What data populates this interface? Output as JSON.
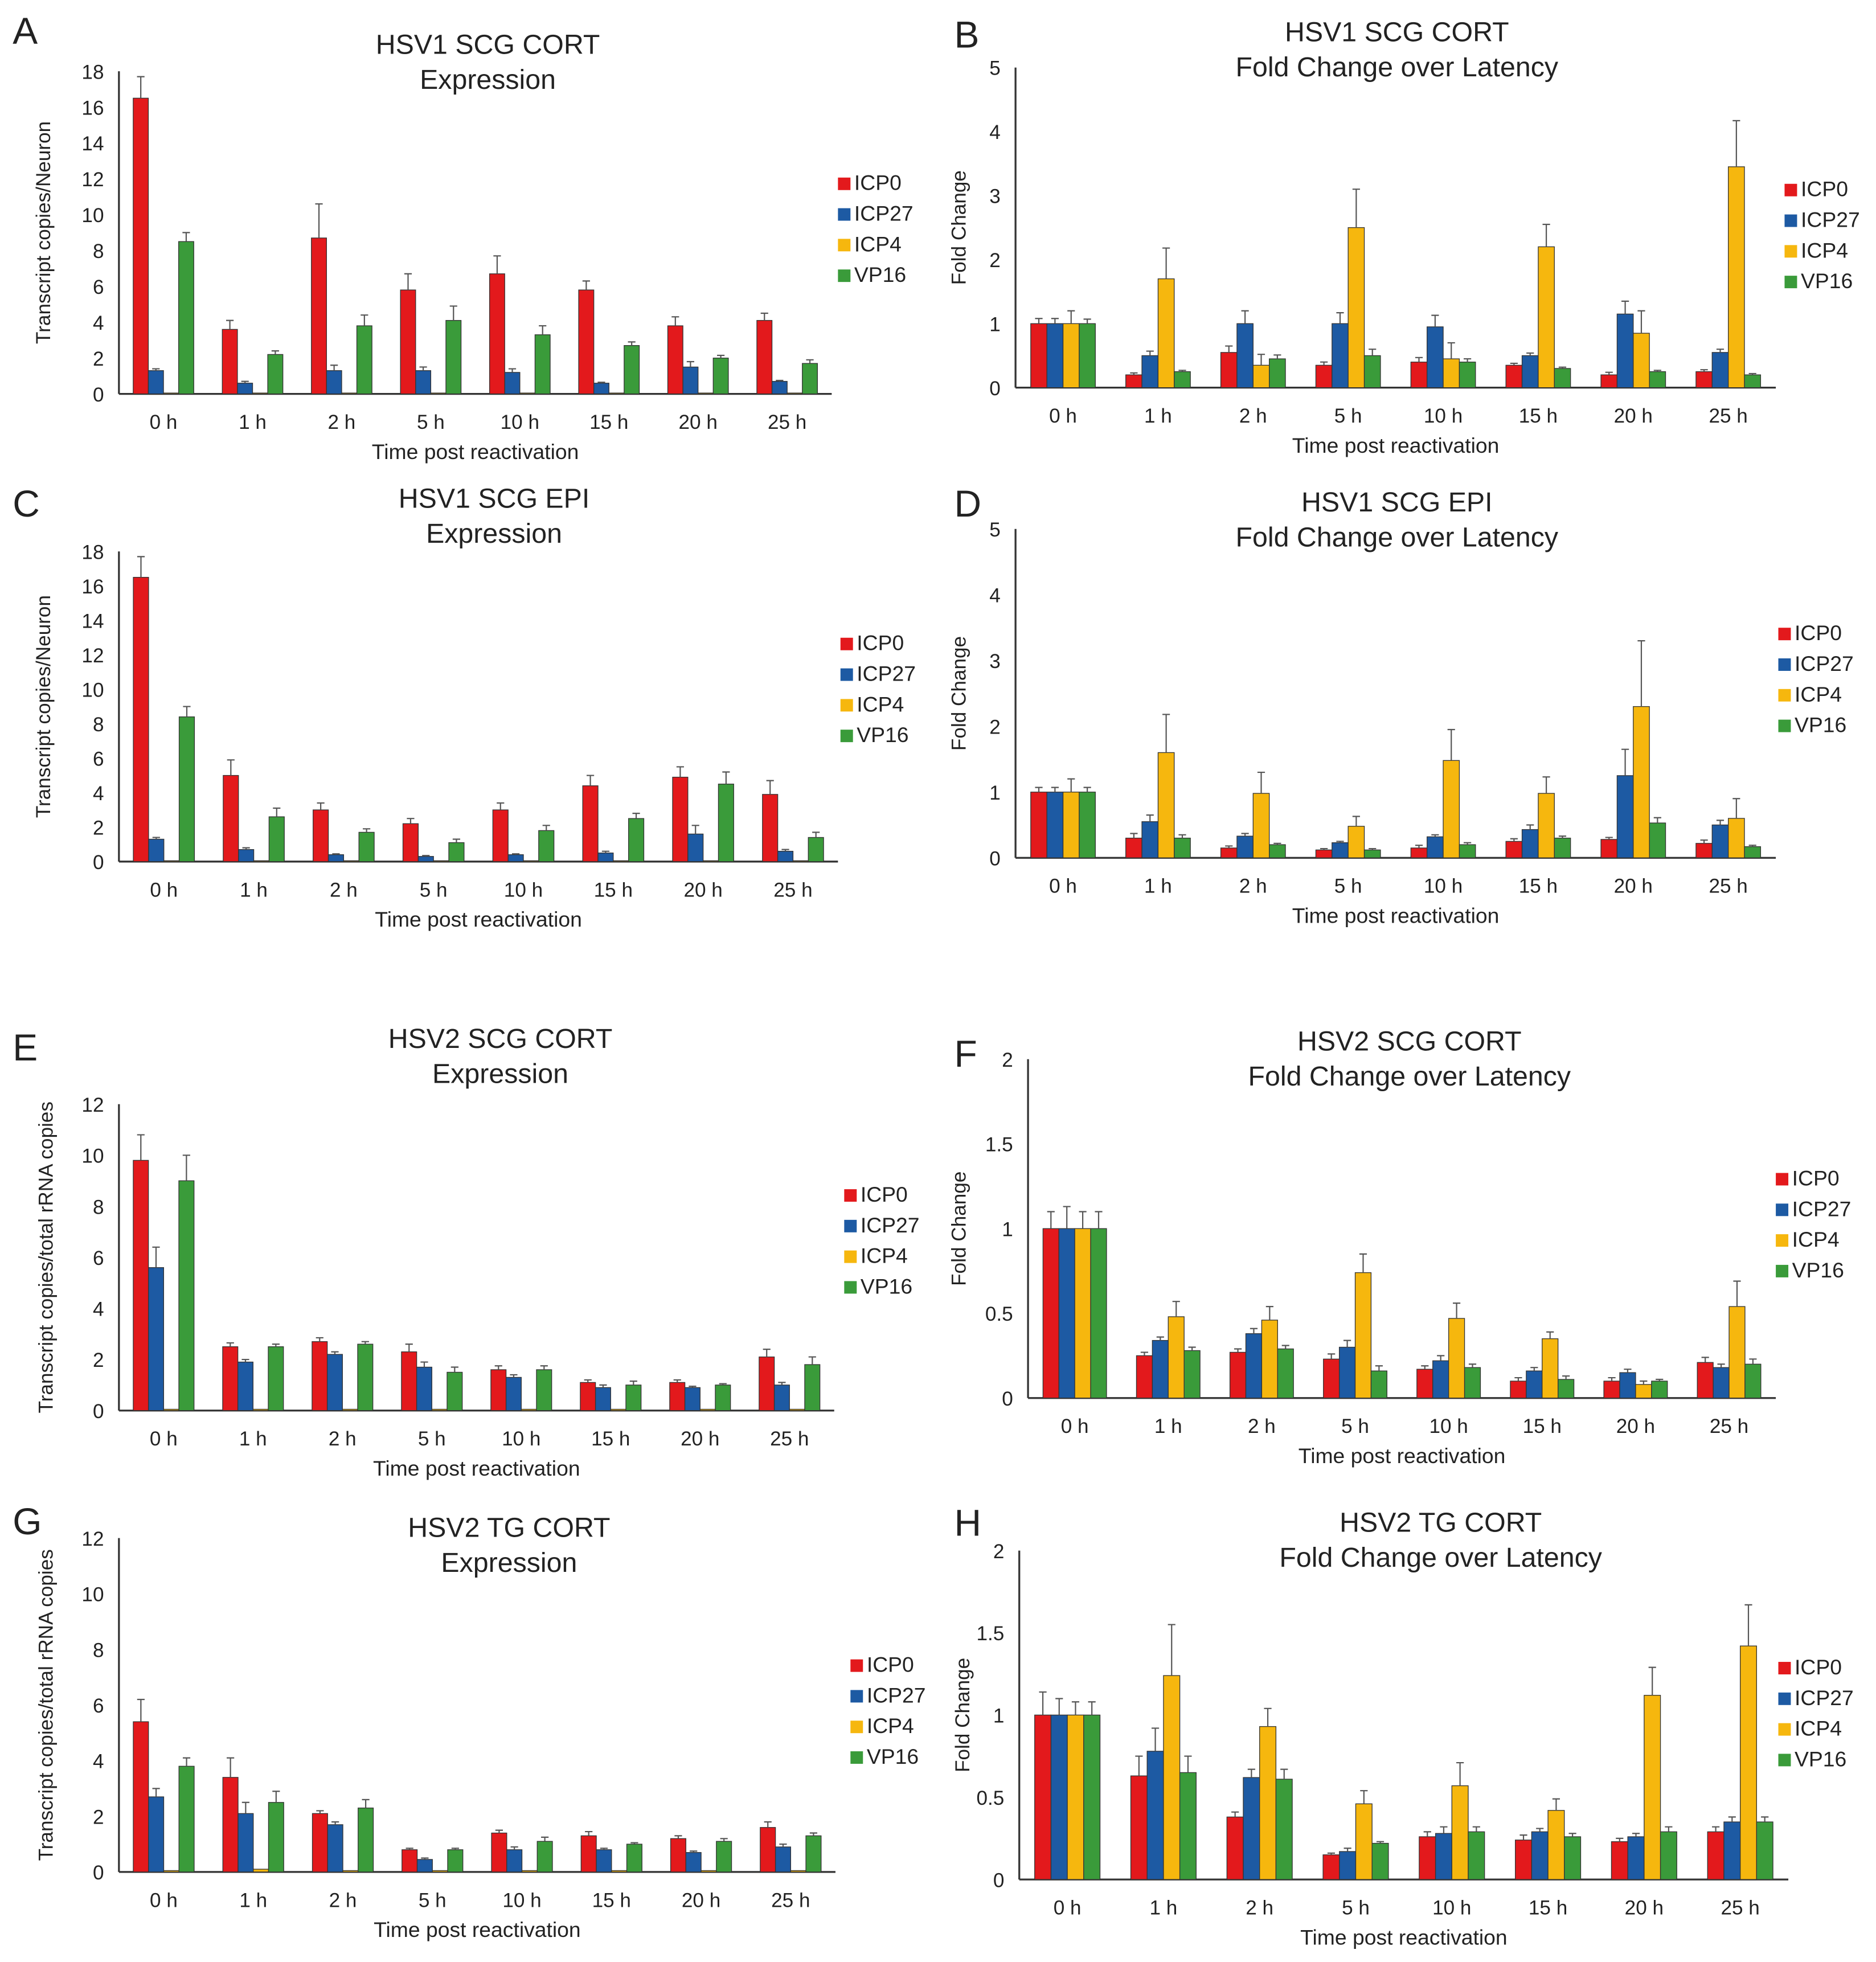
{
  "series_names": [
    "ICP0",
    "ICP27",
    "ICP4",
    "VP16"
  ],
  "colors": {
    "ICP0": "#e3191c",
    "ICP27": "#1d5aa3",
    "ICP4": "#f6b70e",
    "VP16": "#3a9b3a"
  },
  "chart_data": [
    {
      "type": "bar",
      "panel": "A",
      "title": [
        "HSV1 SCG CORT",
        "Expression"
      ],
      "xlabel": "Time post reactivation",
      "ylabel": "Transcript copies/Neuron",
      "ylim": [
        0,
        18
      ],
      "yticks": [
        0,
        2,
        4,
        6,
        8,
        10,
        12,
        14,
        16,
        18
      ],
      "legend": "right",
      "categories": [
        "0 h",
        "1 h",
        "2 h",
        "5 h",
        "10 h",
        "15 h",
        "20 h",
        "25 h"
      ],
      "series": [
        {
          "name": "ICP0",
          "values": [
            16.5,
            3.6,
            8.7,
            5.8,
            6.7,
            5.8,
            3.8,
            4.1
          ],
          "err": [
            1.2,
            0.5,
            1.9,
            0.9,
            1.0,
            0.5,
            0.5,
            0.4
          ]
        },
        {
          "name": "ICP27",
          "values": [
            1.3,
            0.6,
            1.3,
            1.3,
            1.2,
            0.6,
            1.5,
            0.7
          ],
          "err": [
            0.1,
            0.1,
            0.3,
            0.2,
            0.2,
            0.05,
            0.3,
            0.05
          ]
        },
        {
          "name": "ICP4",
          "values": [
            0.05,
            0.05,
            0.05,
            0.05,
            0.05,
            0.05,
            0.05,
            0.05
          ],
          "err": [
            0,
            0,
            0,
            0,
            0,
            0,
            0,
            0
          ]
        },
        {
          "name": "VP16",
          "values": [
            8.5,
            2.2,
            3.8,
            4.1,
            3.3,
            2.7,
            2.0,
            1.7
          ],
          "err": [
            0.5,
            0.2,
            0.6,
            0.8,
            0.5,
            0.2,
            0.15,
            0.2
          ]
        }
      ]
    },
    {
      "type": "bar",
      "panel": "B",
      "title": [
        "HSV1 SCG CORT",
        "Fold Change over Latency"
      ],
      "xlabel": "Time post reactivation",
      "ylabel": "Fold Change",
      "ylim": [
        0,
        5
      ],
      "yticks": [
        0,
        1,
        2,
        3,
        4,
        5
      ],
      "legend": "right",
      "categories": [
        "0 h",
        "1 h",
        "2 h",
        "5 h",
        "10 h",
        "15 h",
        "20 h",
        "25 h"
      ],
      "series": [
        {
          "name": "ICP0",
          "values": [
            1,
            0.2,
            0.55,
            0.35,
            0.4,
            0.35,
            0.2,
            0.25
          ],
          "err": [
            0.08,
            0.03,
            0.1,
            0.05,
            0.07,
            0.03,
            0.04,
            0.03
          ]
        },
        {
          "name": "ICP27",
          "values": [
            1,
            0.5,
            1.0,
            1.0,
            0.95,
            0.5,
            1.15,
            0.55
          ],
          "err": [
            0.08,
            0.07,
            0.2,
            0.17,
            0.18,
            0.04,
            0.2,
            0.05
          ]
        },
        {
          "name": "ICP4",
          "values": [
            1,
            1.7,
            0.35,
            2.5,
            0.45,
            2.2,
            0.85,
            3.45
          ],
          "err": [
            0.2,
            0.48,
            0.17,
            0.6,
            0.25,
            0.35,
            0.35,
            0.72
          ]
        },
        {
          "name": "VP16",
          "values": [
            1,
            0.25,
            0.45,
            0.5,
            0.4,
            0.3,
            0.25,
            0.2
          ],
          "err": [
            0.07,
            0.02,
            0.06,
            0.1,
            0.05,
            0.02,
            0.02,
            0.02
          ]
        }
      ]
    },
    {
      "type": "bar",
      "panel": "C",
      "title": [
        "HSV1 SCG EPI",
        "Expression"
      ],
      "xlabel": "Time post reactivation",
      "ylabel": "Transcript copies/Neuron",
      "ylim": [
        0,
        18
      ],
      "yticks": [
        0,
        2,
        4,
        6,
        8,
        10,
        12,
        14,
        16,
        18
      ],
      "legend": "right",
      "categories": [
        "0 h",
        "1 h",
        "2 h",
        "5 h",
        "10 h",
        "15 h",
        "20 h",
        "25 h"
      ],
      "series": [
        {
          "name": "ICP0",
          "values": [
            16.5,
            5.0,
            3.0,
            2.2,
            3.0,
            4.4,
            4.9,
            3.9
          ],
          "err": [
            1.2,
            0.9,
            0.4,
            0.3,
            0.4,
            0.6,
            0.6,
            0.8
          ]
        },
        {
          "name": "ICP27",
          "values": [
            1.3,
            0.7,
            0.4,
            0.3,
            0.4,
            0.5,
            1.6,
            0.6
          ],
          "err": [
            0.1,
            0.1,
            0.05,
            0.05,
            0.05,
            0.1,
            0.5,
            0.1
          ]
        },
        {
          "name": "ICP4",
          "values": [
            0.05,
            0.05,
            0.05,
            0.05,
            0.05,
            0.05,
            0.05,
            0.05
          ],
          "err": [
            0,
            0,
            0,
            0,
            0,
            0,
            0,
            0
          ]
        },
        {
          "name": "VP16",
          "values": [
            8.4,
            2.6,
            1.7,
            1.1,
            1.8,
            2.5,
            4.5,
            1.4
          ],
          "err": [
            0.6,
            0.5,
            0.2,
            0.2,
            0.3,
            0.3,
            0.7,
            0.3
          ]
        }
      ]
    },
    {
      "type": "bar",
      "panel": "D",
      "title": [
        "HSV1 SCG EPI",
        "Fold Change over Latency"
      ],
      "xlabel": "Time post reactivation",
      "ylabel": "Fold Change",
      "ylim": [
        0,
        5
      ],
      "yticks": [
        0,
        1,
        2,
        3,
        4,
        5
      ],
      "legend": "right",
      "categories": [
        "0 h",
        "1 h",
        "2 h",
        "5 h",
        "10 h",
        "15 h",
        "20 h",
        "25 h"
      ],
      "series": [
        {
          "name": "ICP0",
          "values": [
            1,
            0.3,
            0.15,
            0.12,
            0.15,
            0.25,
            0.28,
            0.22
          ],
          "err": [
            0.07,
            0.07,
            0.03,
            0.02,
            0.04,
            0.04,
            0.03,
            0.05
          ]
        },
        {
          "name": "ICP27",
          "values": [
            1,
            0.55,
            0.33,
            0.23,
            0.32,
            0.43,
            1.25,
            0.5
          ],
          "err": [
            0.07,
            0.1,
            0.04,
            0.02,
            0.03,
            0.07,
            0.4,
            0.07
          ]
        },
        {
          "name": "ICP4",
          "values": [
            1,
            1.6,
            0.98,
            0.48,
            1.48,
            0.98,
            2.3,
            0.6
          ],
          "err": [
            0.2,
            0.58,
            0.32,
            0.15,
            0.47,
            0.25,
            1.0,
            0.3
          ]
        },
        {
          "name": "VP16",
          "values": [
            1,
            0.3,
            0.2,
            0.12,
            0.2,
            0.3,
            0.53,
            0.17
          ],
          "err": [
            0.07,
            0.05,
            0.02,
            0.02,
            0.03,
            0.03,
            0.08,
            0.02
          ]
        }
      ]
    },
    {
      "type": "bar",
      "panel": "E",
      "title": [
        "HSV2 SCG CORT",
        "Expression"
      ],
      "xlabel": "Time post reactivation",
      "ylabel": "Transcript copies/total rRNA copies",
      "ylim": [
        0,
        12
      ],
      "yticks": [
        0,
        2,
        4,
        6,
        8,
        10,
        12
      ],
      "legend": "right",
      "categories": [
        "0 h",
        "1 h",
        "2 h",
        "5 h",
        "10 h",
        "15 h",
        "20 h",
        "25 h"
      ],
      "series": [
        {
          "name": "ICP0",
          "values": [
            9.8,
            2.5,
            2.7,
            2.3,
            1.6,
            1.1,
            1.1,
            2.1
          ],
          "err": [
            1.0,
            0.15,
            0.15,
            0.3,
            0.15,
            0.1,
            0.1,
            0.3
          ]
        },
        {
          "name": "ICP27",
          "values": [
            5.6,
            1.9,
            2.2,
            1.7,
            1.3,
            0.9,
            0.9,
            1.0
          ],
          "err": [
            0.8,
            0.1,
            0.1,
            0.2,
            0.1,
            0.1,
            0.05,
            0.1
          ]
        },
        {
          "name": "ICP4",
          "values": [
            0.05,
            0.05,
            0.05,
            0.05,
            0.05,
            0.05,
            0.05,
            0.05
          ],
          "err": [
            0,
            0,
            0,
            0,
            0,
            0,
            0,
            0
          ]
        },
        {
          "name": "VP16",
          "values": [
            9.0,
            2.5,
            2.6,
            1.5,
            1.6,
            1.0,
            1.0,
            1.8
          ],
          "err": [
            1.0,
            0.1,
            0.1,
            0.2,
            0.15,
            0.15,
            0.05,
            0.3
          ]
        }
      ]
    },
    {
      "type": "bar",
      "panel": "F",
      "title": [
        "HSV2 SCG CORT",
        "Fold Change over Latency"
      ],
      "xlabel": "Time post reactivation",
      "ylabel": "Fold Change",
      "ylim": [
        0,
        2
      ],
      "yticks": [
        0,
        0.5,
        1,
        1.5,
        2
      ],
      "legend": "right",
      "categories": [
        "0 h",
        "1 h",
        "2 h",
        "5 h",
        "10 h",
        "15 h",
        "20 h",
        "25 h"
      ],
      "series": [
        {
          "name": "ICP0",
          "values": [
            1,
            0.25,
            0.27,
            0.23,
            0.17,
            0.1,
            0.1,
            0.21
          ],
          "err": [
            0.1,
            0.02,
            0.02,
            0.03,
            0.02,
            0.02,
            0.02,
            0.03
          ]
        },
        {
          "name": "ICP27",
          "values": [
            1,
            0.34,
            0.38,
            0.3,
            0.22,
            0.16,
            0.15,
            0.18
          ],
          "err": [
            0.13,
            0.02,
            0.03,
            0.04,
            0.03,
            0.02,
            0.02,
            0.02
          ]
        },
        {
          "name": "ICP4",
          "values": [
            1,
            0.48,
            0.46,
            0.74,
            0.47,
            0.35,
            0.08,
            0.54
          ],
          "err": [
            0.1,
            0.09,
            0.08,
            0.11,
            0.09,
            0.04,
            0.02,
            0.15
          ]
        },
        {
          "name": "VP16",
          "values": [
            1,
            0.28,
            0.29,
            0.16,
            0.18,
            0.11,
            0.1,
            0.2
          ],
          "err": [
            0.1,
            0.02,
            0.02,
            0.03,
            0.02,
            0.02,
            0.01,
            0.03
          ]
        }
      ]
    },
    {
      "type": "bar",
      "panel": "G",
      "title": [
        "HSV2 TG CORT",
        "Expression"
      ],
      "xlabel": "Time post reactivation",
      "ylabel": "Transcript copies/total rRNA copies",
      "ylim": [
        0,
        12
      ],
      "yticks": [
        0,
        2,
        4,
        6,
        8,
        10,
        12
      ],
      "legend": "right",
      "categories": [
        "0 h",
        "1 h",
        "2 h",
        "5 h",
        "10 h",
        "15 h",
        "20 h",
        "25 h"
      ],
      "series": [
        {
          "name": "ICP0",
          "values": [
            5.4,
            3.4,
            2.1,
            0.8,
            1.4,
            1.3,
            1.2,
            1.6
          ],
          "err": [
            0.8,
            0.7,
            0.1,
            0.05,
            0.1,
            0.15,
            0.1,
            0.2
          ]
        },
        {
          "name": "ICP27",
          "values": [
            2.7,
            2.1,
            1.7,
            0.45,
            0.8,
            0.8,
            0.7,
            0.9
          ],
          "err": [
            0.3,
            0.4,
            0.1,
            0.05,
            0.1,
            0.05,
            0.05,
            0.1
          ]
        },
        {
          "name": "ICP4",
          "values": [
            0.05,
            0.1,
            0.05,
            0.05,
            0.05,
            0.05,
            0.05,
            0.05
          ],
          "err": [
            0,
            0,
            0,
            0,
            0,
            0,
            0,
            0
          ]
        },
        {
          "name": "VP16",
          "values": [
            3.8,
            2.5,
            2.3,
            0.8,
            1.1,
            1.0,
            1.1,
            1.3
          ],
          "err": [
            0.3,
            0.4,
            0.3,
            0.05,
            0.15,
            0.05,
            0.1,
            0.1
          ]
        }
      ]
    },
    {
      "type": "bar",
      "panel": "H",
      "title": [
        "HSV2 TG CORT",
        "Fold Change over Latency"
      ],
      "xlabel": "Time post reactivation",
      "ylabel": "Fold Change",
      "ylim": [
        0,
        2
      ],
      "yticks": [
        0,
        0.5,
        1,
        1.5,
        2
      ],
      "legend": "right",
      "categories": [
        "0 h",
        "1 h",
        "2 h",
        "5 h",
        "10 h",
        "15 h",
        "20 h",
        "25 h"
      ],
      "series": [
        {
          "name": "ICP0",
          "values": [
            1,
            0.63,
            0.38,
            0.15,
            0.26,
            0.24,
            0.23,
            0.29
          ],
          "err": [
            0.14,
            0.12,
            0.03,
            0.01,
            0.03,
            0.03,
            0.02,
            0.03
          ]
        },
        {
          "name": "ICP27",
          "values": [
            1,
            0.78,
            0.62,
            0.17,
            0.28,
            0.29,
            0.26,
            0.35
          ],
          "err": [
            0.1,
            0.14,
            0.05,
            0.02,
            0.04,
            0.02,
            0.02,
            0.03
          ]
        },
        {
          "name": "ICP4",
          "values": [
            1,
            1.24,
            0.93,
            0.46,
            0.57,
            0.42,
            1.12,
            1.42
          ],
          "err": [
            0.08,
            0.31,
            0.11,
            0.08,
            0.14,
            0.07,
            0.17,
            0.25
          ]
        },
        {
          "name": "VP16",
          "values": [
            1,
            0.65,
            0.61,
            0.22,
            0.29,
            0.26,
            0.29,
            0.35
          ],
          "err": [
            0.08,
            0.1,
            0.06,
            0.01,
            0.03,
            0.02,
            0.03,
            0.03
          ]
        }
      ]
    }
  ]
}
